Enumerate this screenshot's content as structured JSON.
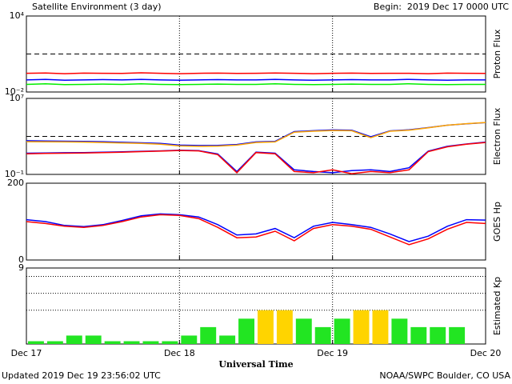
{
  "title": "Satellite Environment (3 day)",
  "begin": "Begin:  2019 Dec 17 0000 UTC",
  "updated": "Updated 2019 Dec 19 23:56:02 UTC",
  "credit": "NOAA/SWPC Boulder, CO USA",
  "chart_data": [
    {
      "type": "line",
      "ylabel": "Proton Flux",
      "log": true,
      "ylim": [
        0.01,
        10000
      ],
      "yticks": [
        {
          "value": 10000,
          "label": "10⁴"
        },
        {
          "value": 0.01,
          "label": "10⁻²"
        }
      ],
      "xlim": [
        0,
        72
      ],
      "xticks": [
        0,
        24,
        48,
        72
      ],
      "threshold": 10,
      "x": [
        0,
        3,
        6,
        9,
        12,
        15,
        18,
        21,
        24,
        27,
        30,
        33,
        36,
        39,
        42,
        45,
        48,
        51,
        54,
        57,
        60,
        63,
        66,
        69,
        72
      ],
      "series": [
        {
          "color": "#ff0000",
          "values": [
            0.3,
            0.32,
            0.28,
            0.31,
            0.3,
            0.29,
            0.33,
            0.3,
            0.28,
            0.3,
            0.31,
            0.29,
            0.3,
            0.32,
            0.3,
            0.28,
            0.3,
            0.31,
            0.29,
            0.3,
            0.3,
            0.28,
            0.31,
            0.3,
            0.29
          ]
        },
        {
          "color": "#0000ff",
          "values": [
            0.09,
            0.1,
            0.085,
            0.09,
            0.095,
            0.09,
            0.1,
            0.09,
            0.085,
            0.09,
            0.095,
            0.09,
            0.09,
            0.1,
            0.09,
            0.085,
            0.09,
            0.095,
            0.09,
            0.09,
            0.1,
            0.09,
            0.085,
            0.09,
            0.09
          ]
        },
        {
          "color": "#00ee00",
          "values": [
            0.04,
            0.045,
            0.038,
            0.04,
            0.042,
            0.04,
            0.045,
            0.04,
            0.038,
            0.04,
            0.042,
            0.04,
            0.04,
            0.045,
            0.04,
            0.038,
            0.04,
            0.042,
            0.04,
            0.04,
            0.045,
            0.04,
            0.038,
            0.04,
            0.04
          ]
        }
      ]
    },
    {
      "type": "line",
      "ylabel": "Electron Flux",
      "log": true,
      "ylim": [
        0.1,
        10000000
      ],
      "yticks": [
        {
          "value": 10000000,
          "label": "10⁷"
        },
        {
          "value": 0.1,
          "label": "10⁻¹"
        }
      ],
      "xlim": [
        0,
        72
      ],
      "xticks": [
        0,
        24,
        48,
        72
      ],
      "threshold": 1000,
      "x": [
        0,
        3,
        6,
        9,
        12,
        15,
        18,
        21,
        24,
        27,
        30,
        33,
        36,
        39,
        42,
        45,
        48,
        51,
        54,
        57,
        60,
        63,
        66,
        69,
        72
      ],
      "series": [
        {
          "color": "#0000ff",
          "values": [
            350,
            330,
            310,
            300,
            280,
            240,
            210,
            180,
            120,
            110,
            115,
            140,
            260,
            300,
            3200,
            4000,
            4800,
            4500,
            900,
            3800,
            5000,
            8500,
            15000,
            21000,
            28000
          ]
        },
        {
          "color": "#ffa500",
          "values": [
            280,
            270,
            260,
            250,
            230,
            200,
            180,
            150,
            100,
            90,
            95,
            120,
            230,
            260,
            2800,
            3500,
            4200,
            4000,
            740,
            3500,
            4500,
            8000,
            15000,
            22000,
            29000
          ]
        },
        {
          "color": "#0000ff",
          "values": [
            17,
            18,
            19,
            20,
            22,
            24,
            27,
            30,
            35,
            32,
            14,
            0.2,
            22,
            17,
            0.3,
            0.2,
            0.15,
            0.25,
            0.3,
            0.2,
            0.5,
            28,
            90,
            160,
            250
          ]
        },
        {
          "color": "#ff0000",
          "values": [
            15,
            16,
            17,
            18,
            20,
            22,
            25,
            28,
            33,
            30,
            12,
            0.15,
            20,
            15,
            0.2,
            0.15,
            0.3,
            0.12,
            0.2,
            0.15,
            0.3,
            25,
            80,
            150,
            230
          ]
        }
      ]
    },
    {
      "type": "line",
      "ylabel": "GOES Hp",
      "log": false,
      "ylim": [
        0,
        200
      ],
      "yticks": [
        200,
        0
      ],
      "xlim": [
        0,
        72
      ],
      "xticks": [
        0,
        24,
        48,
        72
      ],
      "x": [
        0,
        3,
        6,
        9,
        12,
        15,
        18,
        21,
        24,
        27,
        30,
        33,
        36,
        39,
        42,
        45,
        48,
        51,
        54,
        57,
        60,
        63,
        66,
        69,
        72
      ],
      "series": [
        {
          "color": "#0000ff",
          "values": [
            105,
            100,
            90,
            87,
            92,
            103,
            115,
            120,
            118,
            112,
            92,
            65,
            68,
            82,
            58,
            88,
            98,
            92,
            85,
            68,
            48,
            62,
            88,
            105,
            104
          ]
        },
        {
          "color": "#ff0000",
          "values": [
            100,
            95,
            88,
            85,
            90,
            100,
            112,
            118,
            116,
            108,
            85,
            58,
            60,
            75,
            50,
            82,
            92,
            88,
            80,
            60,
            40,
            55,
            80,
            98,
            95
          ]
        }
      ]
    },
    {
      "type": "bar",
      "ylabel": "Estimated Kp",
      "xlabel": "Universal Time",
      "ylim": [
        0,
        9
      ],
      "yticks": [
        9
      ],
      "hlines": [
        4,
        6,
        8
      ],
      "xlim": [
        0,
        72
      ],
      "xticks": [
        {
          "value": 0,
          "label": "Dec 17"
        },
        {
          "value": 24,
          "label": "Dec 18"
        },
        {
          "value": 48,
          "label": "Dec 19"
        },
        {
          "value": 72,
          "label": "Dec 20"
        }
      ],
      "bar_hours": 3,
      "bar_colors": [
        {
          "min": 0,
          "color": "#22e522"
        },
        {
          "min": 4,
          "color": "#ffd400"
        }
      ],
      "values": [
        0.33,
        0.33,
        1,
        1,
        0.33,
        0.33,
        0.33,
        0.33,
        1,
        2,
        1,
        3,
        4,
        4,
        3,
        2,
        3,
        4,
        4,
        3,
        2,
        2,
        2,
        null
      ]
    }
  ]
}
